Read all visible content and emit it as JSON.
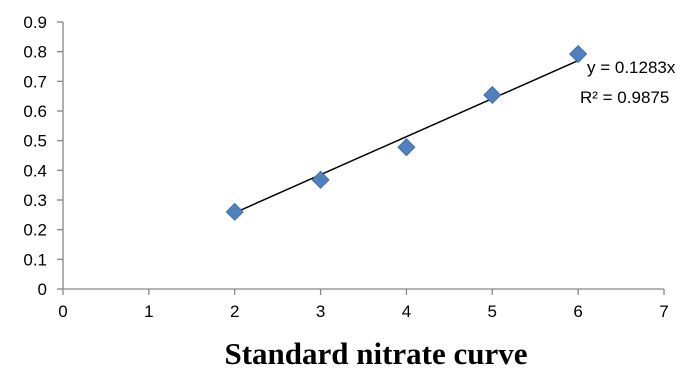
{
  "chart_data": {
    "type": "scatter",
    "title": "Standard nitrate curve",
    "xlabel": "",
    "ylabel": "",
    "xlim": [
      0,
      7
    ],
    "ylim": [
      0,
      0.9
    ],
    "x_ticks": [
      0,
      1,
      2,
      3,
      4,
      5,
      6,
      7
    ],
    "y_ticks": [
      0,
      0.1,
      0.2,
      0.3,
      0.4,
      0.5,
      0.6,
      0.7,
      0.8,
      0.9
    ],
    "grid": false,
    "legend": "none",
    "series": [
      {
        "x": [
          2,
          3,
          4,
          5,
          6
        ],
        "y": [
          0.26,
          0.368,
          0.478,
          0.654,
          0.792
        ],
        "marker": "diamond",
        "color": "#4F81BD"
      }
    ],
    "trendline": {
      "type": "linear",
      "x_range": [
        2,
        6
      ],
      "y_range": [
        0.257,
        0.77
      ],
      "color": "#000000"
    },
    "annotations": {
      "equation": "y = 0.1283x",
      "r_squared": "R² = 0.9875"
    }
  }
}
